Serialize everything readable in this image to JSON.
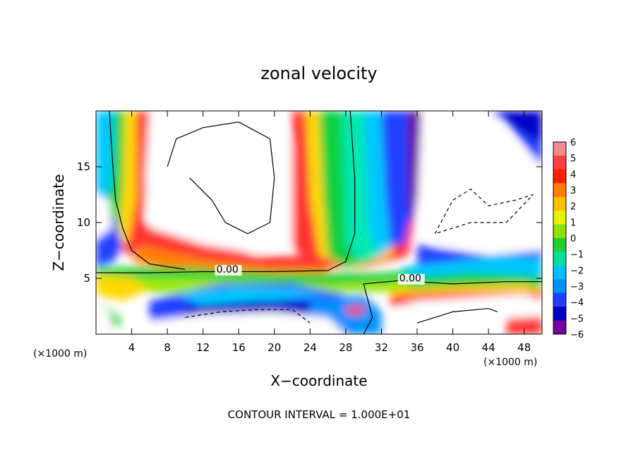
{
  "chart_data": {
    "type": "heatmap",
    "title": "zonal velocity",
    "xlabel": "X−coordinate",
    "ylabel": "Z−coordinate",
    "x_unit_left": "(×1000 m)",
    "x_unit_right": "(×1000 m)",
    "xlim": [
      0,
      50
    ],
    "ylim": [
      0,
      20
    ],
    "xticks": [
      4,
      8,
      12,
      16,
      20,
      24,
      28,
      32,
      36,
      40,
      44,
      48
    ],
    "yticks": [
      5,
      10,
      15
    ],
    "colorbar": {
      "levels": [
        6,
        5,
        4,
        3,
        2,
        1,
        0,
        -1,
        -2,
        -3,
        -4,
        -5,
        -6
      ],
      "labels": [
        "6",
        "5",
        "4",
        "3",
        "2",
        "1",
        "0",
        "−1",
        "−2",
        "−3",
        "−4",
        "−5",
        "−6"
      ],
      "colors": [
        "#f08c8c",
        "#ff4040",
        "#ff2000",
        "#ff7f00",
        "#ffc000",
        "#e8f000",
        "#90e000",
        "#20d030",
        "#00e0a0",
        "#00c0ff",
        "#0090ff",
        "#2040ff",
        "#0000c0",
        "#7000a0"
      ]
    },
    "contour_labels": [
      {
        "text": "0.00",
        "x": 13.5,
        "z": 5.5
      },
      {
        "text": "0.00",
        "x": 34.0,
        "z": 4.7
      }
    ],
    "contour_interval_text": "CONTOUR INTERVAL = 1.000E+01"
  }
}
